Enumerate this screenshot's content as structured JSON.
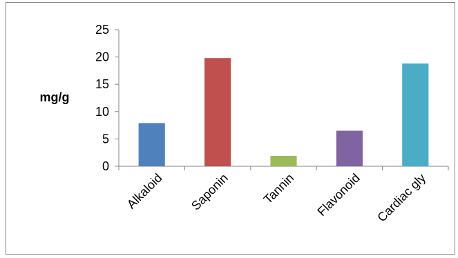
{
  "chart_data": {
    "type": "bar",
    "title": "",
    "xlabel": "",
    "ylabel": "mg/g",
    "categories": [
      "Alkaloid",
      "Saponin",
      "Tannin",
      "Flavonoid",
      "Cardiac gly"
    ],
    "values": [
      7.9,
      19.8,
      1.9,
      6.5,
      18.8
    ],
    "colors": [
      "#4f81bd",
      "#c0504d",
      "#9bbb59",
      "#8064a2",
      "#4bacc6"
    ],
    "yticks": [
      0,
      5,
      10,
      15,
      20,
      25
    ],
    "ylim": [
      0,
      25
    ],
    "grid": false,
    "legend": "none"
  }
}
